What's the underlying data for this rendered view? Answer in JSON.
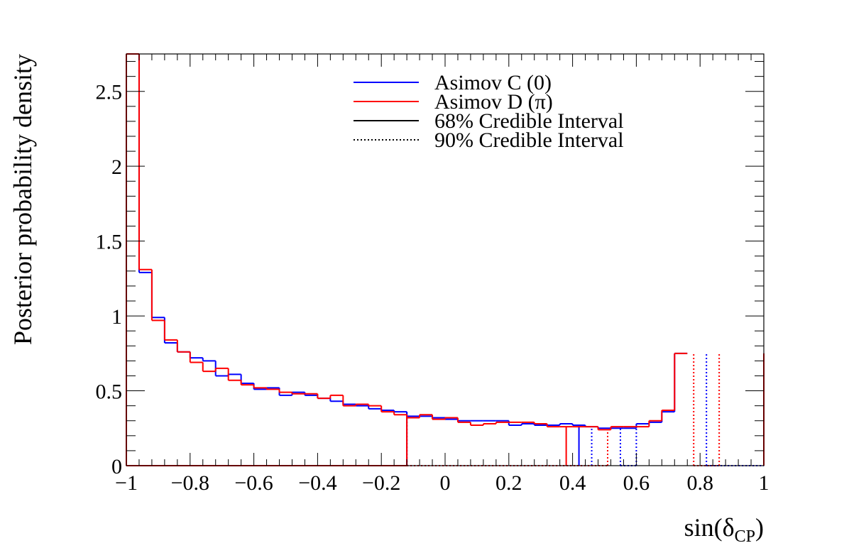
{
  "chart_data": {
    "type": "histogram",
    "xlabel": "sin(δCP)",
    "xlabel_parts": {
      "main": "sin(δ",
      "sub": "CP",
      "close": ")"
    },
    "ylabel": "Posterior probability density",
    "xlim": [
      -1,
      1
    ],
    "ylim": [
      0,
      2.75
    ],
    "grid": false,
    "legend_position": "top-right",
    "x_ticks": [
      {
        "v": -1,
        "label": "−1"
      },
      {
        "v": -0.8,
        "label": "−0.8"
      },
      {
        "v": -0.6,
        "label": "−0.6"
      },
      {
        "v": -0.4,
        "label": "−0.4"
      },
      {
        "v": -0.2,
        "label": "−0.2"
      },
      {
        "v": 0,
        "label": "0"
      },
      {
        "v": 0.2,
        "label": "0.2"
      },
      {
        "v": 0.4,
        "label": "0.4"
      },
      {
        "v": 0.6,
        "label": "0.6"
      },
      {
        "v": 0.8,
        "label": "0.8"
      },
      {
        "v": 1,
        "label": "1"
      }
    ],
    "y_ticks": [
      {
        "v": 0,
        "label": "0"
      },
      {
        "v": 0.5,
        "label": "0.5"
      },
      {
        "v": 1,
        "label": "1"
      },
      {
        "v": 1.5,
        "label": "1.5"
      },
      {
        "v": 2,
        "label": "2"
      },
      {
        "v": 2.5,
        "label": "2.5"
      }
    ],
    "bin_edges_start": -1,
    "bin_width": 0.04,
    "series": [
      {
        "name": "Asimov C (0)",
        "color": "#0000ff",
        "values": [
          2.75,
          1.29,
          0.99,
          0.82,
          0.76,
          0.72,
          0.7,
          0.6,
          0.61,
          0.55,
          0.51,
          0.52,
          0.47,
          0.49,
          0.47,
          0.45,
          0.43,
          0.41,
          0.4,
          0.38,
          0.37,
          0.36,
          0.33,
          0.33,
          0.32,
          0.31,
          0.3,
          0.3,
          0.3,
          0.3,
          0.27,
          0.28,
          0.27,
          0.27,
          0.28,
          0.27,
          0.26,
          0.25,
          0.25,
          0.25,
          0.28,
          0.29,
          0.36,
          0.75
        ],
        "interval68": [
          -0.12,
          0.42
        ],
        "interval90": [
          [
            -0.12,
            0.46
          ],
          [
            0.55,
            0.6
          ],
          [
            0.82,
            1.0
          ]
        ]
      },
      {
        "name": "Asimov D (π)",
        "color": "#ff0000",
        "values": [
          2.75,
          1.31,
          0.97,
          0.84,
          0.76,
          0.69,
          0.63,
          0.65,
          0.57,
          0.54,
          0.52,
          0.51,
          0.49,
          0.48,
          0.48,
          0.45,
          0.47,
          0.4,
          0.41,
          0.4,
          0.36,
          0.34,
          0.32,
          0.34,
          0.31,
          0.32,
          0.29,
          0.27,
          0.28,
          0.29,
          0.29,
          0.29,
          0.28,
          0.26,
          0.26,
          0.26,
          0.26,
          0.24,
          0.26,
          0.26,
          0.26,
          0.3,
          0.37,
          0.75
        ],
        "interval68": [
          -0.12,
          0.38
        ],
        "interval90": [
          [
            -0.12,
            0.51
          ],
          [
            0.78,
            0.86
          ]
        ]
      }
    ],
    "legend": [
      {
        "label": "Asimov C (0)",
        "color": "#0000ff",
        "style": "solid"
      },
      {
        "label": "Asimov D (π)",
        "color": "#ff0000",
        "style": "solid"
      },
      {
        "label": "68% Credible Interval",
        "color": "#000000",
        "style": "solid"
      },
      {
        "label": "90% Credible Interval",
        "color": "#000000",
        "style": "dotted"
      }
    ]
  }
}
